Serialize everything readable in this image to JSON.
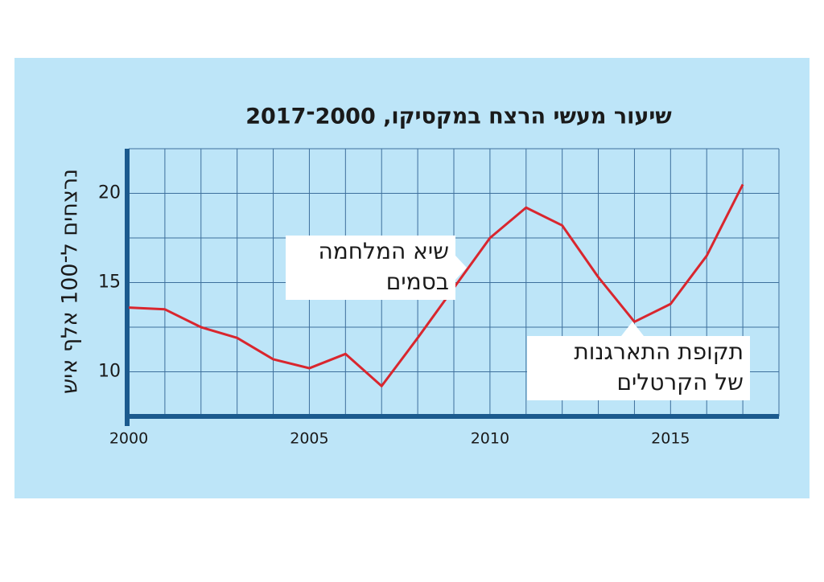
{
  "chart_data": {
    "type": "line",
    "title": "שיעור מעשי הרצח במקסיקו, 2000־2017",
    "ylabel": "נרצחים ל־100 אלף איש",
    "x": [
      2000,
      2001,
      2002,
      2003,
      2004,
      2005,
      2006,
      2007,
      2008,
      2009,
      2010,
      2011,
      2012,
      2013,
      2014,
      2015,
      2016,
      2017
    ],
    "series": [
      {
        "name": "שיעור מעשי הרצח",
        "color": "#d9262e",
        "values": [
          13.6,
          13.5,
          12.5,
          11.9,
          10.7,
          10.2,
          11.0,
          9.2,
          11.9,
          14.7,
          17.5,
          19.2,
          18.2,
          15.3,
          12.8,
          13.8,
          16.5,
          20.5
        ]
      }
    ],
    "xlim": [
      2000,
      2018
    ],
    "xticks": [
      2000,
      2005,
      2010,
      2015
    ],
    "ylim": [
      7.5,
      22.5
    ],
    "yticks": [
      10,
      15,
      20
    ],
    "xgrid": [
      2000,
      2001,
      2002,
      2003,
      2004,
      2005,
      2006,
      2007,
      2008,
      2009,
      2010,
      2011,
      2012,
      2013,
      2014,
      2015,
      2016,
      2017,
      2018
    ],
    "ygrid": [
      7.5,
      10,
      12.5,
      15,
      17.5,
      20,
      22.5
    ],
    "grid": true,
    "annotations": [
      {
        "lines": [
          "שיא המלחמה",
          "בסמים"
        ]
      },
      {
        "lines": [
          "תקופת התארגנות",
          "של הקרטלים"
        ]
      }
    ]
  }
}
